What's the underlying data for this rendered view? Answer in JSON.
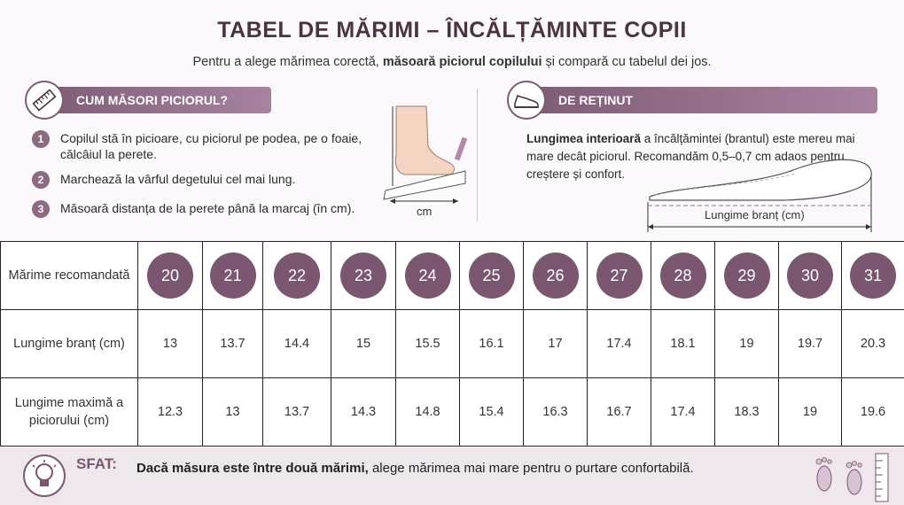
{
  "title": "TABEL DE MĂRIMI – ÎNCĂLȚĂMINTE COPII",
  "subtitle": {
    "part1": "Pentru a alege mărimea corectă, ",
    "bold": "măsoară piciorul copilului",
    "part2": " și compară cu tabelul dei jos."
  },
  "measure_section": {
    "heading": "CUM MĂSORI PICIORUL?",
    "icon": "ruler-icon",
    "steps": [
      {
        "num": "1",
        "text": "Copilul stă în picioare, cu piciorul pe podea, pe o foaie, călcâiul la perete."
      },
      {
        "num": "2",
        "text": "Marchează la vârful degetului cel mai lung."
      },
      {
        "num": "3",
        "text": "Măsoară distanța de la perete până la marcaj (în cm)."
      }
    ],
    "diagram_label": "cm"
  },
  "note_section": {
    "heading": "DE REȚINUT",
    "icon": "shoe-icon",
    "bold": "Lungimea interioară",
    "text": " a încălțămintei (brantul) este mereu mai mare decât piciorul. Recomandăm 0,5–0,7 cm adaos pentru creștere și confort.",
    "diagram_label": "Lungime branț (cm)"
  },
  "table": {
    "row_headers": [
      "Mărime recomandată",
      "Lungime branț (cm)",
      "Lungime maximă a piciorului (cm)"
    ],
    "sizes": [
      "20",
      "21",
      "22",
      "23",
      "24",
      "25",
      "26",
      "27",
      "28",
      "29",
      "30",
      "31"
    ],
    "insole_length": [
      "13",
      "13.7",
      "14.4",
      "15",
      "15.5",
      "16.1",
      "17",
      "17.4",
      "18.1",
      "19",
      "19.7",
      "20.3"
    ],
    "max_foot_length": [
      "12.3",
      "13",
      "13.7",
      "14.3",
      "14.8",
      "15.4",
      "16.3",
      "16.7",
      "17.4",
      "18.3",
      "19",
      "19.6"
    ]
  },
  "tip": {
    "label": "SFAT:",
    "bold": "Dacă măsura este între două mărimi,",
    "text": " alege mărimea mai mare pentru o purtare confortabilă.",
    "icon": "lightbulb-icon",
    "decor_icon": "footprints-icon"
  },
  "colors": {
    "accent": "#7a5670",
    "title": "#4a3442",
    "footer_bg": "#eee8ed"
  }
}
